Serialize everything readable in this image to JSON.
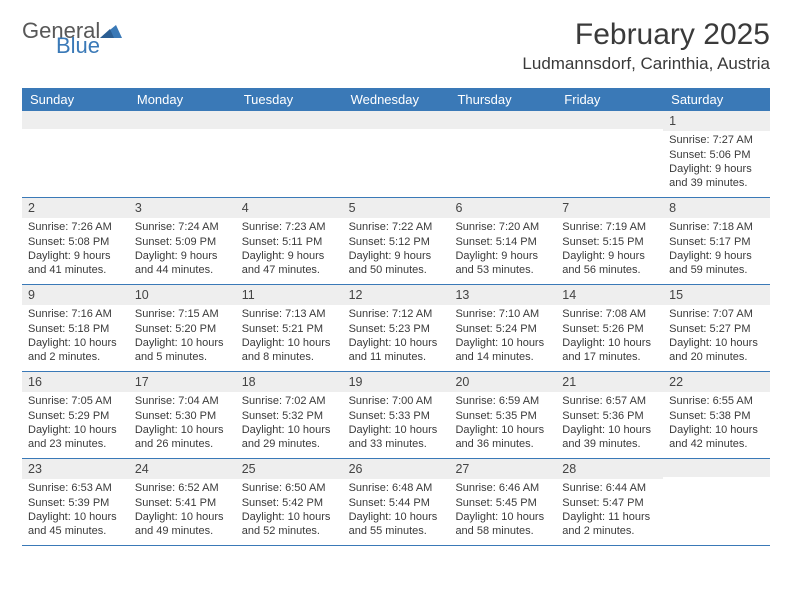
{
  "brand": {
    "general": "General",
    "blue": "Blue"
  },
  "title": "February 2025",
  "location": "Ludmannsdorf, Carinthia, Austria",
  "colors": {
    "header_bg": "#3a79b7",
    "header_text": "#ffffff",
    "band_bg": "#eeeeee",
    "border": "#3a79b7",
    "text": "#3a3a3a",
    "logo_blue": "#3a79b7",
    "logo_gray": "#585858"
  },
  "weekdays": [
    "Sunday",
    "Monday",
    "Tuesday",
    "Wednesday",
    "Thursday",
    "Friday",
    "Saturday"
  ],
  "weeks": [
    [
      {
        "n": "",
        "sun": "",
        "set": "",
        "day": ""
      },
      {
        "n": "",
        "sun": "",
        "set": "",
        "day": ""
      },
      {
        "n": "",
        "sun": "",
        "set": "",
        "day": ""
      },
      {
        "n": "",
        "sun": "",
        "set": "",
        "day": ""
      },
      {
        "n": "",
        "sun": "",
        "set": "",
        "day": ""
      },
      {
        "n": "",
        "sun": "",
        "set": "",
        "day": ""
      },
      {
        "n": "1",
        "sun": "Sunrise: 7:27 AM",
        "set": "Sunset: 5:06 PM",
        "day": "Daylight: 9 hours and 39 minutes."
      }
    ],
    [
      {
        "n": "2",
        "sun": "Sunrise: 7:26 AM",
        "set": "Sunset: 5:08 PM",
        "day": "Daylight: 9 hours and 41 minutes."
      },
      {
        "n": "3",
        "sun": "Sunrise: 7:24 AM",
        "set": "Sunset: 5:09 PM",
        "day": "Daylight: 9 hours and 44 minutes."
      },
      {
        "n": "4",
        "sun": "Sunrise: 7:23 AM",
        "set": "Sunset: 5:11 PM",
        "day": "Daylight: 9 hours and 47 minutes."
      },
      {
        "n": "5",
        "sun": "Sunrise: 7:22 AM",
        "set": "Sunset: 5:12 PM",
        "day": "Daylight: 9 hours and 50 minutes."
      },
      {
        "n": "6",
        "sun": "Sunrise: 7:20 AM",
        "set": "Sunset: 5:14 PM",
        "day": "Daylight: 9 hours and 53 minutes."
      },
      {
        "n": "7",
        "sun": "Sunrise: 7:19 AM",
        "set": "Sunset: 5:15 PM",
        "day": "Daylight: 9 hours and 56 minutes."
      },
      {
        "n": "8",
        "sun": "Sunrise: 7:18 AM",
        "set": "Sunset: 5:17 PM",
        "day": "Daylight: 9 hours and 59 minutes."
      }
    ],
    [
      {
        "n": "9",
        "sun": "Sunrise: 7:16 AM",
        "set": "Sunset: 5:18 PM",
        "day": "Daylight: 10 hours and 2 minutes."
      },
      {
        "n": "10",
        "sun": "Sunrise: 7:15 AM",
        "set": "Sunset: 5:20 PM",
        "day": "Daylight: 10 hours and 5 minutes."
      },
      {
        "n": "11",
        "sun": "Sunrise: 7:13 AM",
        "set": "Sunset: 5:21 PM",
        "day": "Daylight: 10 hours and 8 minutes."
      },
      {
        "n": "12",
        "sun": "Sunrise: 7:12 AM",
        "set": "Sunset: 5:23 PM",
        "day": "Daylight: 10 hours and 11 minutes."
      },
      {
        "n": "13",
        "sun": "Sunrise: 7:10 AM",
        "set": "Sunset: 5:24 PM",
        "day": "Daylight: 10 hours and 14 minutes."
      },
      {
        "n": "14",
        "sun": "Sunrise: 7:08 AM",
        "set": "Sunset: 5:26 PM",
        "day": "Daylight: 10 hours and 17 minutes."
      },
      {
        "n": "15",
        "sun": "Sunrise: 7:07 AM",
        "set": "Sunset: 5:27 PM",
        "day": "Daylight: 10 hours and 20 minutes."
      }
    ],
    [
      {
        "n": "16",
        "sun": "Sunrise: 7:05 AM",
        "set": "Sunset: 5:29 PM",
        "day": "Daylight: 10 hours and 23 minutes."
      },
      {
        "n": "17",
        "sun": "Sunrise: 7:04 AM",
        "set": "Sunset: 5:30 PM",
        "day": "Daylight: 10 hours and 26 minutes."
      },
      {
        "n": "18",
        "sun": "Sunrise: 7:02 AM",
        "set": "Sunset: 5:32 PM",
        "day": "Daylight: 10 hours and 29 minutes."
      },
      {
        "n": "19",
        "sun": "Sunrise: 7:00 AM",
        "set": "Sunset: 5:33 PM",
        "day": "Daylight: 10 hours and 33 minutes."
      },
      {
        "n": "20",
        "sun": "Sunrise: 6:59 AM",
        "set": "Sunset: 5:35 PM",
        "day": "Daylight: 10 hours and 36 minutes."
      },
      {
        "n": "21",
        "sun": "Sunrise: 6:57 AM",
        "set": "Sunset: 5:36 PM",
        "day": "Daylight: 10 hours and 39 minutes."
      },
      {
        "n": "22",
        "sun": "Sunrise: 6:55 AM",
        "set": "Sunset: 5:38 PM",
        "day": "Daylight: 10 hours and 42 minutes."
      }
    ],
    [
      {
        "n": "23",
        "sun": "Sunrise: 6:53 AM",
        "set": "Sunset: 5:39 PM",
        "day": "Daylight: 10 hours and 45 minutes."
      },
      {
        "n": "24",
        "sun": "Sunrise: 6:52 AM",
        "set": "Sunset: 5:41 PM",
        "day": "Daylight: 10 hours and 49 minutes."
      },
      {
        "n": "25",
        "sun": "Sunrise: 6:50 AM",
        "set": "Sunset: 5:42 PM",
        "day": "Daylight: 10 hours and 52 minutes."
      },
      {
        "n": "26",
        "sun": "Sunrise: 6:48 AM",
        "set": "Sunset: 5:44 PM",
        "day": "Daylight: 10 hours and 55 minutes."
      },
      {
        "n": "27",
        "sun": "Sunrise: 6:46 AM",
        "set": "Sunset: 5:45 PM",
        "day": "Daylight: 10 hours and 58 minutes."
      },
      {
        "n": "28",
        "sun": "Sunrise: 6:44 AM",
        "set": "Sunset: 5:47 PM",
        "day": "Daylight: 11 hours and 2 minutes."
      },
      {
        "n": "",
        "sun": "",
        "set": "",
        "day": ""
      }
    ]
  ]
}
